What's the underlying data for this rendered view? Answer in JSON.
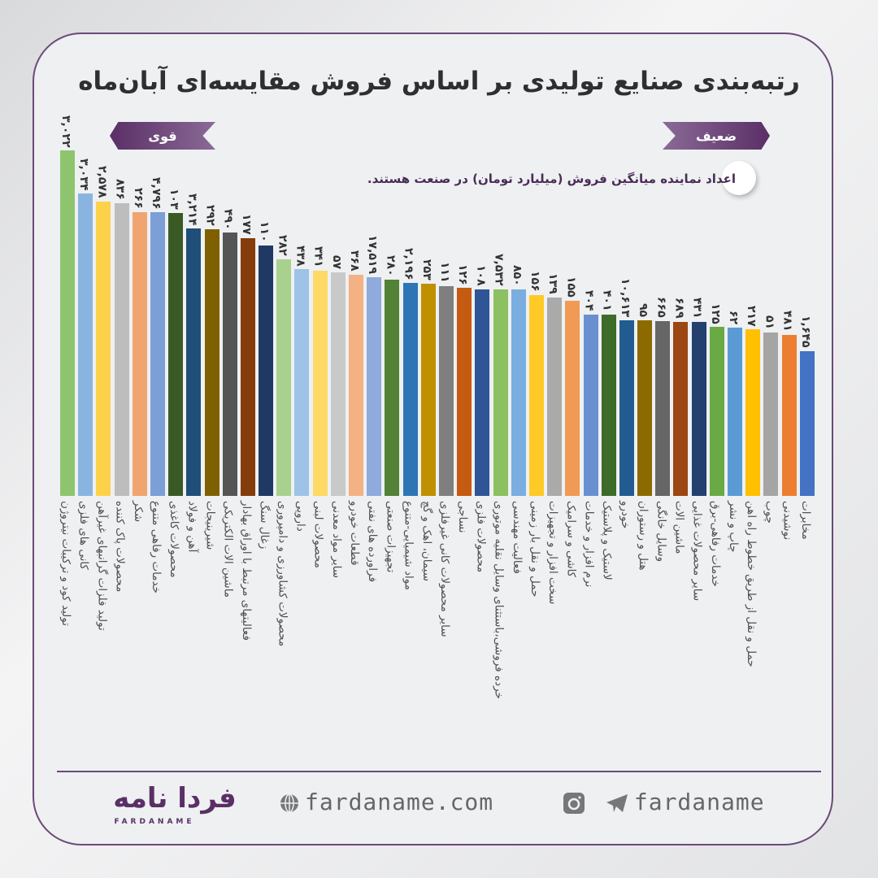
{
  "title": "رتبه‌بندی صنایع تولیدی بر اساس فروش مقایسه‌ای آبان‌ماه",
  "ribbons": {
    "strong": "قوی",
    "weak": "ضعیف"
  },
  "note": "اعداد نماینده میانگین فروش (میلیارد تومان) در صنعت هستند.",
  "footer": {
    "logo_fa": "فردا نامه",
    "logo_en": "FARDANAME",
    "website": "fardaname.com",
    "social": "fardaname",
    "icons": [
      "globe-icon",
      "instagram-icon",
      "telegram-icon"
    ]
  },
  "colors": {
    "accent": "#5a2f66",
    "background": "#eef0f2"
  },
  "chart_data": {
    "type": "bar",
    "title": "رتبه‌بندی صنایع تولیدی بر اساس فروش مقایسه‌ای آبان‌ماه",
    "xlabel": "",
    "ylabel": "",
    "grid": false,
    "axis_range_note": "bar height = relative ranking index (unlabeled), strongest left to weakest right",
    "categories": [
      "تولید کود و ترکیبات نیتروژن",
      "کانی های فلزی",
      "تولید فلزات گرانبهای غیرآهن",
      "محصولات پاک کننده",
      "شکر",
      "خدمات رفاهی متنوع",
      "محصولات کاغذی",
      "آهن و فولاد",
      "شیرینیجات",
      "ماشین الات الکتریکی",
      "فعالیتهای مرتبط با اوراق بهادار",
      "زغال سنگ",
      "محصولات کشاورزی و دامپروری",
      "دارویی",
      "محصولات لبنی",
      "سایر مواد معدنی",
      "قطعات خودرو",
      "فراورده های نفتی",
      "تجهیزات صنعتی",
      "مواد شیمیایی-متنوع",
      "سیمان، اهک و گچ",
      "سایر محصولات کانی غیرفلزی",
      "نساجی",
      "محصولات فلزی",
      "خرده فروشی،باستثنای وسایل نقلیه موتوری",
      "فعالیت مهندسی",
      "حمل و نقل بار زمینی",
      "سخت افزار و تجهیزات",
      "کاشی و سرامیک",
      "نرم افزار و خدمات",
      "لاستیک و پلاستیک",
      "خودرو",
      "هتل و رستوران",
      "وسایل خانگی",
      "ماشین الات",
      "سایر محصولات غذایی",
      "خدمات رفاهی-برق",
      "چاپ و نشر",
      "حمل و نقل از طریق خطوط راه اهن",
      "چوب",
      "نوشیدنی",
      "مخابرات"
    ],
    "ranking_index": [
      100,
      87.5,
      85.2,
      84.7,
      82.1,
      82.1,
      81.9,
      77.4,
      77.2,
      76.2,
      74.6,
      72.5,
      68.5,
      65.6,
      65.2,
      64.7,
      64.0,
      63.3,
      62.6,
      61.6,
      61.4,
      60.7,
      60.2,
      59.8,
      59.8,
      59.8,
      58.1,
      57.4,
      56.5,
      52.5,
      52.5,
      50.8,
      50.8,
      50.6,
      50.4,
      50.4,
      48.9,
      48.7,
      48.2,
      47.3,
      46.6,
      41.9
    ],
    "avg_sales_billion_toman": [
      3022,
      3034,
      2578,
      836,
      266,
      4796,
      103,
      3214,
      292,
      490,
      177,
      110,
      282,
      438,
      341,
      57,
      368,
      17519,
      280,
      2196,
      253,
      111,
      126,
      108,
      7532,
      850,
      156,
      139,
      155,
      404,
      401,
      10613,
      95,
      665,
      689,
      431,
      125,
      62,
      217,
      51,
      481,
      1645
    ],
    "value_labels": [
      "۳,۰۲۲",
      "۳,۰۳۴",
      "۲,۵۷۸",
      "۸۳۶",
      "۲۶۶",
      "۴,۷۹۶",
      "۱۰۳",
      "۳,۲۱۴",
      "۲۹۲",
      "۴۹۰",
      "۱۷۷",
      "۱۱۰",
      "۲۸۲",
      "۴۳۸",
      "۳۴۱",
      "۵۷",
      "۳۶۸",
      "۱۷,۵۱۹",
      "۲۸۰",
      "۲,۱۹۶",
      "۲۵۳",
      "۱۱۱",
      "۱۲۶",
      "۱۰۸",
      "۷,۵۳۲",
      "۸۵۰",
      "۱۵۶",
      "۱۳۹",
      "۱۵۵",
      "۴۰۴",
      "۴۰۱",
      "۱۰,۶۱۳",
      "۹۵",
      "۶۶۵",
      "۶۸۹",
      "۴۳۱",
      "۱۲۵",
      "۶۲",
      "۲۱۷",
      "۵۱",
      "۴۸۱",
      "۱,۶۴۵"
    ],
    "bar_colors": [
      "#8fc46e",
      "#8ab4e0",
      "#fdd14a",
      "#bdbdbd",
      "#f0a470",
      "#7b9fd6",
      "#3a5a25",
      "#1f4e79",
      "#7f6000",
      "#555555",
      "#843c0c",
      "#1f3864",
      "#a9d18e",
      "#9dc3e6",
      "#ffd966",
      "#c9c9c9",
      "#f4b183",
      "#8faadc",
      "#538135",
      "#2e75b6",
      "#bf9000",
      "#7f7f7f",
      "#c55a11",
      "#2f5597",
      "#8dc060",
      "#7aaee0",
      "#ffc926",
      "#aaaaaa",
      "#f19a55",
      "#6a8fd0",
      "#3d6b2a",
      "#225b8f",
      "#8c6a00",
      "#666666",
      "#9c4612",
      "#24406f",
      "#6aaa45",
      "#5b9bd5",
      "#ffc000",
      "#a5a5a5",
      "#ed7d31",
      "#4472c4"
    ]
  }
}
